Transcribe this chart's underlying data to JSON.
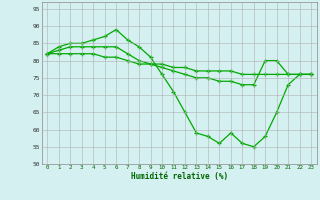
{
  "xlabel": "Humidité relative (%)",
  "xlim": [
    -0.5,
    23.5
  ],
  "ylim": [
    50,
    97
  ],
  "yticks": [
    50,
    55,
    60,
    65,
    70,
    75,
    80,
    85,
    90,
    95
  ],
  "xticks": [
    0,
    1,
    2,
    3,
    4,
    5,
    6,
    7,
    8,
    9,
    10,
    11,
    12,
    13,
    14,
    15,
    16,
    17,
    18,
    19,
    20,
    21,
    22,
    23
  ],
  "background_color": "#d4f0f0",
  "grid_color": "#b0b0b0",
  "line_color": "#00aa00",
  "series": [
    [
      82,
      84,
      85,
      85,
      86,
      87,
      89,
      86,
      84,
      81,
      76,
      71,
      65,
      59,
      58,
      56,
      59,
      56,
      55,
      58,
      65,
      73,
      76,
      76
    ],
    [
      82,
      82,
      82,
      82,
      82,
      81,
      81,
      80,
      79,
      79,
      79,
      78,
      78,
      77,
      77,
      77,
      77,
      76,
      76,
      76,
      76,
      76,
      76,
      76
    ],
    [
      82,
      83,
      84,
      84,
      84,
      84,
      84,
      82,
      80,
      79,
      78,
      77,
      76,
      75,
      75,
      74,
      74,
      73,
      73,
      80,
      80,
      76,
      76,
      76
    ]
  ]
}
